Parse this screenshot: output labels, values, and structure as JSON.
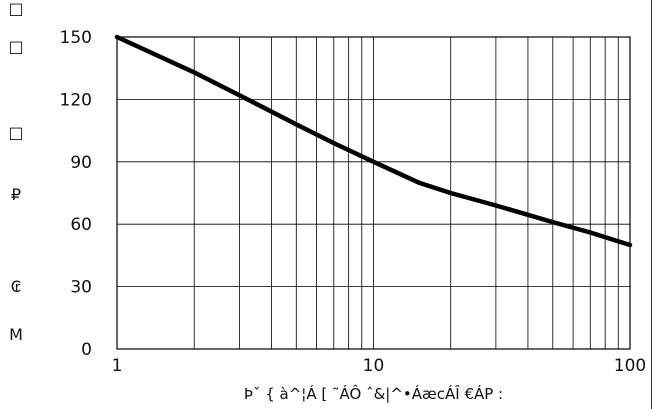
{
  "chart_data": {
    "type": "line",
    "title": "",
    "xlabel": "Þˇ { à^¦Á [ ˜ÁÔ ˆ&|^•ÁæcÁÎ €ÁP :",
    "ylabel_glyphs": [
      "□",
      "□",
      "□",
      "₽",
      "₢",
      "M"
    ],
    "xscale": "log",
    "xlim": [
      1,
      100
    ],
    "ylim": [
      0,
      150
    ],
    "x_ticks": [
      1,
      10,
      100
    ],
    "x_tick_labels": [
      "1",
      "10",
      "100"
    ],
    "y_ticks": [
      0,
      30,
      60,
      90,
      120,
      150
    ],
    "y_tick_labels": [
      "0",
      "30",
      "60",
      "90",
      "120",
      "150"
    ],
    "grid": true,
    "legend": "none",
    "series": [
      {
        "x": [
          1,
          2,
          3,
          5,
          7,
          10,
          15,
          20,
          30,
          50,
          70,
          100
        ],
        "y": [
          150,
          133,
          122,
          108,
          99,
          90,
          80,
          75,
          69,
          61,
          56,
          50
        ]
      }
    ],
    "colors": {
      "line": "#000000",
      "grid": "#000000",
      "text": "#111111"
    }
  }
}
